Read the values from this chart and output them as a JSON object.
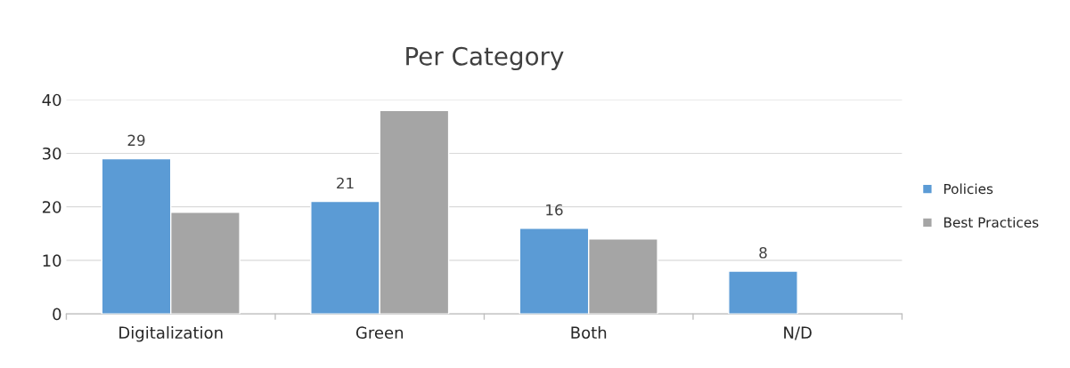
{
  "chart_data": {
    "type": "bar",
    "title": "Per Category",
    "categories": [
      "Digitalization",
      "Green",
      "Both",
      "N/D"
    ],
    "series": [
      {
        "name": "Policies",
        "color": "#5b9bd5",
        "values": [
          29,
          21,
          16,
          8
        ],
        "value_labels": [
          "29",
          "21",
          "16",
          "8"
        ]
      },
      {
        "name": "Best Practices",
        "color": "#a5a5a5",
        "values": [
          19,
          38,
          14,
          null
        ]
      }
    ],
    "ylim": [
      0,
      40
    ],
    "yticks": [
      0,
      10,
      20,
      30,
      40
    ],
    "grid": "y",
    "legend": "right"
  }
}
